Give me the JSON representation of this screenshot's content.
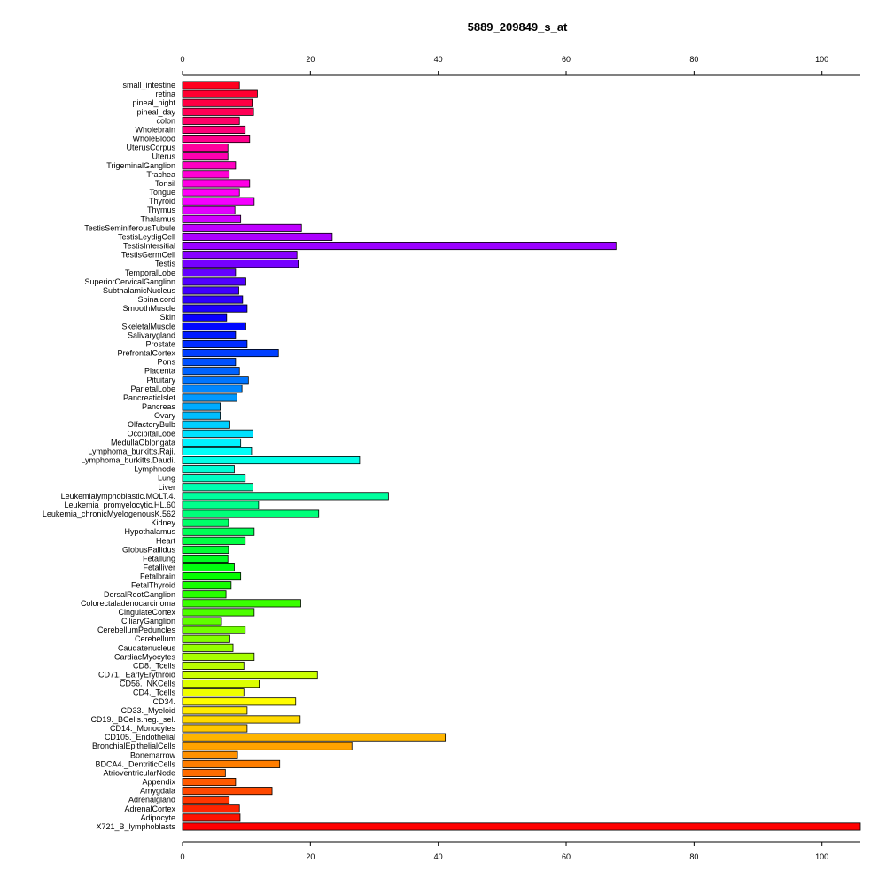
{
  "chart_data": {
    "type": "bar",
    "orientation": "horizontal",
    "title": "5889_209849_s_at",
    "xlabel": "",
    "ylabel": "",
    "xlim": [
      0,
      106
    ],
    "xticks": [
      0,
      20,
      40,
      60,
      80,
      100
    ],
    "axes": [
      "top",
      "bottom"
    ],
    "grid": false,
    "categories": [
      "small_intestine",
      "retina",
      "pineal_night",
      "pineal_day",
      "colon",
      "Wholebrain",
      "WholeBlood",
      "UterusCorpus",
      "Uterus",
      "TrigeminalGanglion",
      "Trachea",
      "Tonsil",
      "Tongue",
      "Thyroid",
      "Thymus",
      "Thalamus",
      "TestisSeminiferousTubule",
      "TestisLeydigCell",
      "TestisIntersitial",
      "TestisGermCell",
      "Testis",
      "TemporalLobe",
      "SuperiorCervicalGanglion",
      "SubthalamicNucleus",
      "Spinalcord",
      "SmoothMuscle",
      "Skin",
      "SkeletalMuscle",
      "Salivarygland",
      "Prostate",
      "PrefrontalCortex",
      "Pons",
      "Placenta",
      "Pituitary",
      "ParietalLobe",
      "PancreaticIslet",
      "Pancreas",
      "Ovary",
      "OlfactoryBulb",
      "OccipitalLobe",
      "MedullaOblongata",
      "Lymphoma_burkitts.Raji.",
      "Lymphoma_burkitts.Daudi.",
      "Lymphnode",
      "Lung",
      "Liver",
      "Leukemialymphoblastic.MOLT.4.",
      "Leukemia_promyelocytic.HL.60",
      "Leukemia_chronicMyelogenousK.562",
      "Kidney",
      "Hypothalamus",
      "Heart",
      "GlobusPallidus",
      "Fetallung",
      "Fetalliver",
      "Fetalbrain",
      "FetalThyroid",
      "DorsalRootGanglion",
      "Colorectaladenocarcinoma",
      "CingulateCortex",
      "CiliaryGanglion",
      "CerebellumPeduncles",
      "Cerebellum",
      "Caudatenucleus",
      "CardiacMyocytes",
      "CD8._Tcells",
      "CD71._EarlyErythroid",
      "CD56._NKCells",
      "CD4._Tcells",
      "CD34.",
      "CD33._Myeloid",
      "CD19._BCells.neg._sel.",
      "CD14._Monocytes",
      "CD105._Endothelial",
      "BronchialEpithelialCells",
      "Bonemarrow",
      "BDCA4._DentriticCells",
      "AtrioventricularNode",
      "Appendix",
      "Amygdala",
      "Adrenalgland",
      "AdrenalCortex",
      "Adipocyte",
      "X721_B_lymphoblasts"
    ],
    "values": [
      8.9,
      11.7,
      10.9,
      11.1,
      8.9,
      9.8,
      10.5,
      7.1,
      7.1,
      8.3,
      7.3,
      10.5,
      8.9,
      11.2,
      8.2,
      9.1,
      18.6,
      23.4,
      67.8,
      17.9,
      18.1,
      8.3,
      9.9,
      8.8,
      9.4,
      10.1,
      6.9,
      9.9,
      8.3,
      10.1,
      15.0,
      8.3,
      8.9,
      10.3,
      9.3,
      8.5,
      5.9,
      5.9,
      7.4,
      11.0,
      9.1,
      10.8,
      27.7,
      8.1,
      9.8,
      11.0,
      32.2,
      11.9,
      21.3,
      7.2,
      11.2,
      9.8,
      7.2,
      7.1,
      8.1,
      9.1,
      7.6,
      6.8,
      18.5,
      11.2,
      6.1,
      9.8,
      7.4,
      7.9,
      11.2,
      9.6,
      21.1,
      12.0,
      9.6,
      17.7,
      10.1,
      18.4,
      10.1,
      41.1,
      26.5,
      8.6,
      15.2,
      6.7,
      8.3,
      14.0,
      7.3,
      8.9,
      9.0,
      106.0
    ]
  }
}
